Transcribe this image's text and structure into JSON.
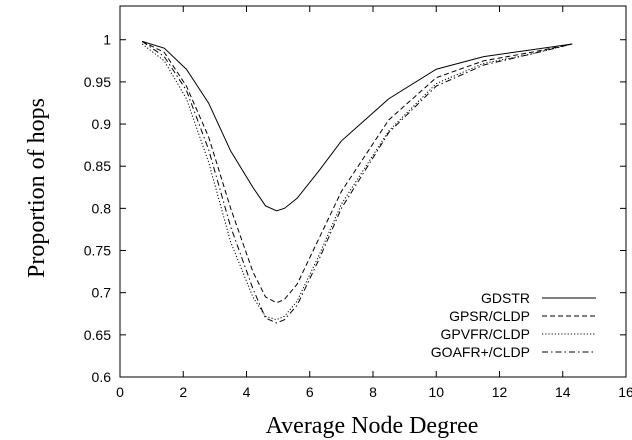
{
  "chart_data": {
    "type": "line",
    "xlabel": "Average Node Degree",
    "ylabel": "Proportion of hops",
    "xlim": [
      0,
      16
    ],
    "ylim": [
      0.6,
      1.04
    ],
    "xticks": [
      0,
      2,
      4,
      6,
      8,
      10,
      12,
      14,
      16
    ],
    "yticks": [
      0.6,
      0.65,
      0.7,
      0.75,
      0.8,
      0.85,
      0.9,
      0.95,
      1
    ],
    "ytick_labels": [
      "0.6",
      "0.65",
      "0.7",
      "0.75",
      "0.8",
      "0.85",
      "0.9",
      "0.95",
      "1"
    ],
    "grid": false,
    "legend_position": "bottom-right",
    "series": [
      {
        "name": "GDSTR",
        "dash": "solid",
        "x": [
          0.7,
          1.4,
          2.1,
          2.8,
          3.5,
          4.2,
          4.6,
          4.95,
          5.2,
          5.6,
          6.3,
          7.0,
          8.5,
          10.0,
          11.5,
          13.0,
          14.3
        ],
        "y": [
          0.998,
          0.99,
          0.965,
          0.925,
          0.868,
          0.825,
          0.803,
          0.797,
          0.8,
          0.812,
          0.845,
          0.88,
          0.93,
          0.965,
          0.98,
          0.988,
          0.995
        ]
      },
      {
        "name": "GPSR/CLDP",
        "dash": "dashed",
        "x": [
          0.7,
          1.4,
          2.1,
          2.8,
          3.5,
          4.2,
          4.6,
          4.95,
          5.2,
          5.6,
          6.3,
          7.0,
          8.5,
          10.0,
          11.5,
          13.0,
          14.3
        ],
        "y": [
          0.998,
          0.985,
          0.945,
          0.885,
          0.8,
          0.725,
          0.695,
          0.688,
          0.692,
          0.71,
          0.765,
          0.82,
          0.905,
          0.955,
          0.975,
          0.985,
          0.995
        ]
      },
      {
        "name": "GPVFR/CLDP",
        "dash": "dotted",
        "x": [
          0.7,
          1.4,
          2.1,
          2.8,
          3.5,
          4.2,
          4.6,
          4.95,
          5.2,
          5.6,
          6.3,
          7.0,
          8.5,
          10.0,
          11.5,
          13.0,
          14.3
        ],
        "y": [
          0.995,
          0.975,
          0.93,
          0.855,
          0.76,
          0.695,
          0.672,
          0.668,
          0.672,
          0.69,
          0.745,
          0.805,
          0.892,
          0.948,
          0.972,
          0.983,
          0.995
        ]
      },
      {
        "name": "GOAFR+/CLDP",
        "dash": "dashdot",
        "x": [
          0.7,
          1.4,
          2.1,
          2.8,
          3.5,
          4.2,
          4.6,
          4.95,
          5.2,
          5.6,
          6.3,
          7.0,
          8.5,
          10.0,
          11.5,
          13.0,
          14.3
        ],
        "y": [
          0.998,
          0.98,
          0.94,
          0.87,
          0.778,
          0.705,
          0.67,
          0.664,
          0.668,
          0.685,
          0.74,
          0.8,
          0.89,
          0.945,
          0.97,
          0.983,
          0.995
        ]
      }
    ]
  }
}
